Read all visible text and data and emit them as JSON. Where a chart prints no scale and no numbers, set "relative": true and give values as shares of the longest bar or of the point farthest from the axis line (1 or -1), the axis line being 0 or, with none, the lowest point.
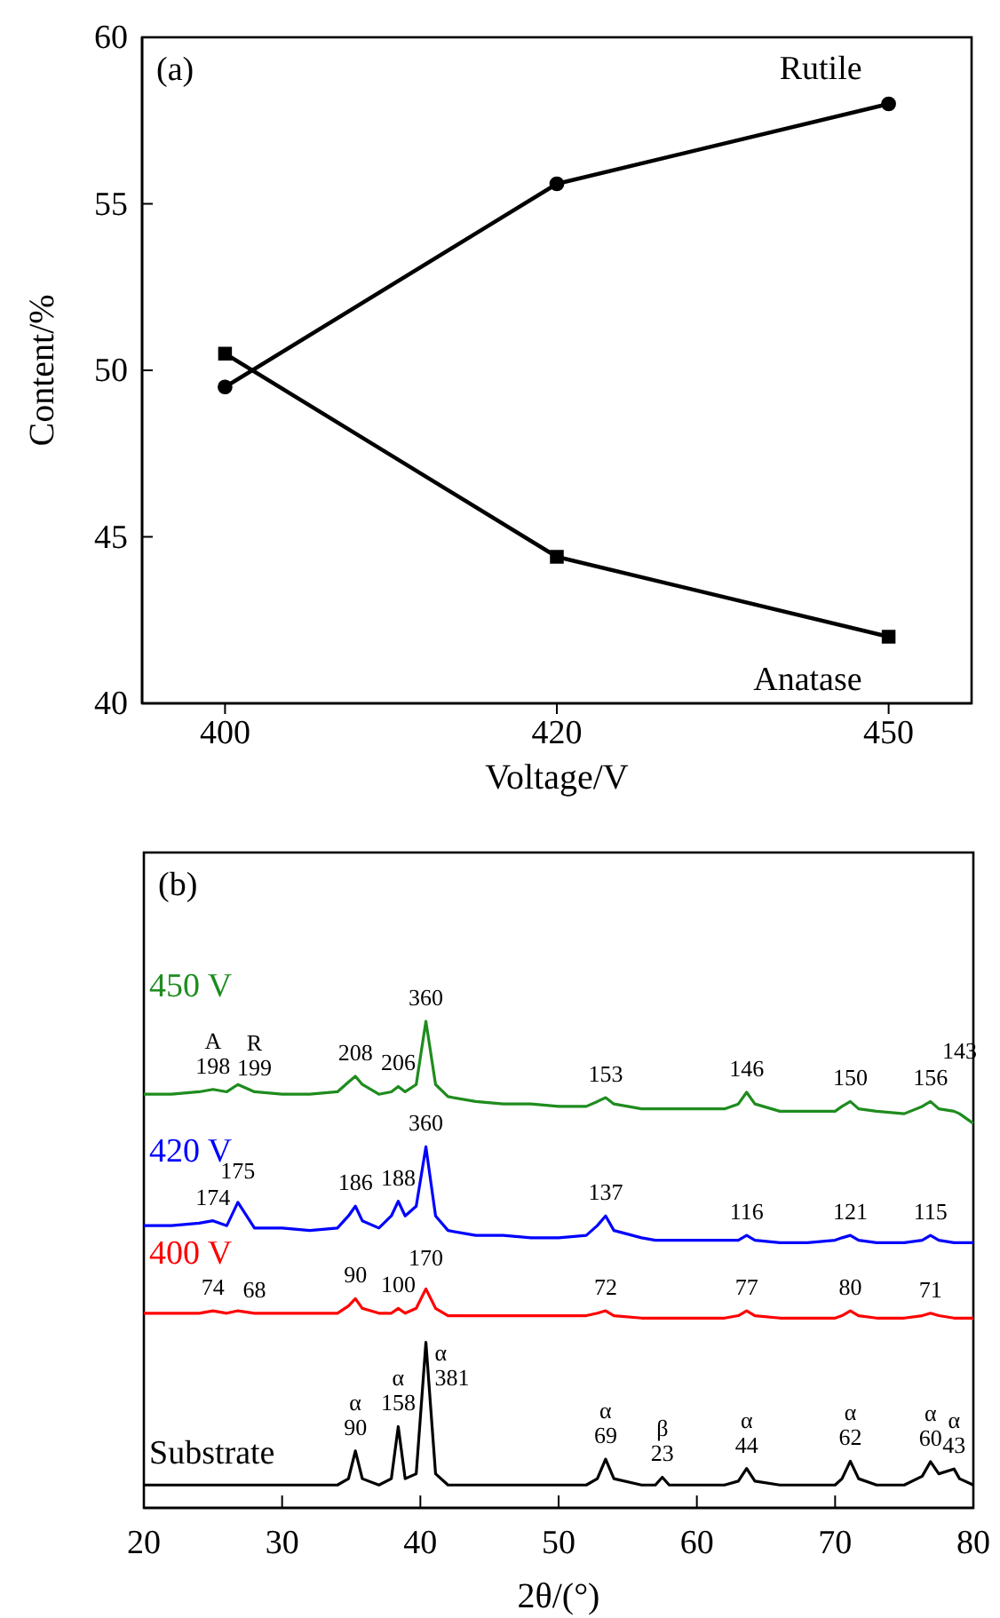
{
  "chart_data": [
    {
      "type": "line",
      "title": "(a)",
      "xlabel": "Voltage/V",
      "ylabel": "Content/%",
      "categories": [
        "400",
        "420",
        "450"
      ],
      "ylim": [
        40,
        60
      ],
      "yticks": [
        40,
        45,
        50,
        55,
        60
      ],
      "line_style": "solid",
      "series": [
        {
          "name": "Rutile",
          "color": "#000000",
          "marker": "circle",
          "values": [
            49.5,
            55.6,
            58.0
          ]
        },
        {
          "name": "Anatase",
          "color": "#000000",
          "marker": "square",
          "values": [
            50.5,
            44.4,
            42.0
          ]
        }
      ]
    },
    {
      "type": "line",
      "title": "(b)",
      "xlabel": "2θ/(°)",
      "relative": true,
      "tick_labels": "x",
      "xlim": [
        20,
        80
      ],
      "xticks": [
        20,
        30,
        40,
        50,
        60,
        70,
        80
      ],
      "line_style": "solid",
      "x": [
        20,
        22,
        24,
        25,
        26,
        26.8,
        28,
        30,
        32,
        34,
        34.8,
        35.3,
        35.8,
        37,
        37.9,
        38.4,
        38.9,
        39.7,
        40.4,
        41.1,
        42,
        44,
        46,
        48,
        50,
        52,
        52.8,
        53.4,
        54,
        56,
        57,
        57.5,
        58,
        60,
        62,
        63,
        63.6,
        64.2,
        66,
        68,
        70,
        70.5,
        71.1,
        71.7,
        73,
        75,
        76.3,
        76.9,
        77.5,
        78.6,
        79,
        80
      ],
      "series": [
        {
          "name": "450 V",
          "color": "#1e8c1e",
          "values": [
            0.85,
            0.85,
            0.855,
            0.86,
            0.855,
            0.87,
            0.855,
            0.85,
            0.85,
            0.855,
            0.875,
            0.887,
            0.87,
            0.85,
            0.855,
            0.866,
            0.855,
            0.87,
            1.0,
            0.87,
            0.845,
            0.835,
            0.83,
            0.83,
            0.825,
            0.825,
            0.835,
            0.843,
            0.83,
            0.82,
            0.82,
            0.82,
            0.82,
            0.82,
            0.82,
            0.83,
            0.854,
            0.83,
            0.815,
            0.815,
            0.815,
            0.825,
            0.835,
            0.82,
            0.815,
            0.81,
            0.825,
            0.835,
            0.82,
            0.815,
            0.81,
            0.79
          ]
        },
        {
          "name": "420 V",
          "color": "#0000ff",
          "values": [
            0.58,
            0.58,
            0.585,
            0.59,
            0.58,
            0.628,
            0.575,
            0.575,
            0.57,
            0.575,
            0.6,
            0.62,
            0.59,
            0.575,
            0.6,
            0.63,
            0.6,
            0.62,
            0.742,
            0.6,
            0.57,
            0.56,
            0.56,
            0.555,
            0.555,
            0.56,
            0.58,
            0.6,
            0.57,
            0.555,
            0.55,
            0.55,
            0.55,
            0.55,
            0.55,
            0.55,
            0.56,
            0.55,
            0.545,
            0.545,
            0.55,
            0.555,
            0.56,
            0.55,
            0.545,
            0.545,
            0.55,
            0.56,
            0.55,
            0.545,
            0.545,
            0.545
          ]
        },
        {
          "name": "400 V",
          "color": "#ff0000",
          "values": [
            0.4,
            0.4,
            0.4,
            0.405,
            0.4,
            0.405,
            0.4,
            0.4,
            0.4,
            0.4,
            0.415,
            0.43,
            0.41,
            0.4,
            0.4,
            0.41,
            0.4,
            0.41,
            0.45,
            0.41,
            0.395,
            0.395,
            0.395,
            0.395,
            0.395,
            0.395,
            0.4,
            0.405,
            0.395,
            0.39,
            0.39,
            0.39,
            0.39,
            0.39,
            0.39,
            0.395,
            0.405,
            0.395,
            0.39,
            0.39,
            0.39,
            0.395,
            0.405,
            0.395,
            0.39,
            0.39,
            0.395,
            0.4,
            0.395,
            0.39,
            0.39,
            0.39
          ]
        },
        {
          "name": "Substrate",
          "color": "#000000",
          "values": [
            0.047,
            0.047,
            0.047,
            0.047,
            0.047,
            0.047,
            0.047,
            0.047,
            0.047,
            0.047,
            0.06,
            0.117,
            0.06,
            0.047,
            0.06,
            0.167,
            0.06,
            0.07,
            0.34,
            0.07,
            0.047,
            0.047,
            0.047,
            0.047,
            0.047,
            0.047,
            0.06,
            0.1,
            0.06,
            0.047,
            0.047,
            0.063,
            0.047,
            0.047,
            0.047,
            0.055,
            0.081,
            0.055,
            0.047,
            0.047,
            0.047,
            0.06,
            0.096,
            0.06,
            0.047,
            0.047,
            0.065,
            0.095,
            0.07,
            0.08,
            0.06,
            0.047
          ]
        }
      ],
      "annotations": [
        {
          "text": "A",
          "x": 25,
          "y": 0.86
        },
        {
          "text": "198",
          "x": 25,
          "y": 0.86
        },
        {
          "text": "R",
          "x": 28,
          "y": 0.855
        },
        {
          "text": "199",
          "x": 28,
          "y": 0.855
        },
        {
          "text": "208",
          "x": 35.3,
          "y": 0.887
        },
        {
          "text": "206",
          "x": 38.4,
          "y": 0.866
        },
        {
          "text": "360",
          "x": 40.4,
          "y": 1.0
        },
        {
          "text": "153",
          "x": 53.4,
          "y": 0.843
        },
        {
          "text": "146",
          "x": 63.6,
          "y": 0.854
        },
        {
          "text": "150",
          "x": 71.1,
          "y": 0.835
        },
        {
          "text": "156",
          "x": 76.9,
          "y": 0.835
        },
        {
          "text": "143",
          "x": 79,
          "y": 0.81
        },
        {
          "text": "174",
          "x": 25,
          "y": 0.59
        },
        {
          "text": "175",
          "x": 26.8,
          "y": 0.628
        },
        {
          "text": "186",
          "x": 35.3,
          "y": 0.62
        },
        {
          "text": "188",
          "x": 38.4,
          "y": 0.63
        },
        {
          "text": "360",
          "x": 40.4,
          "y": 0.742
        },
        {
          "text": "137",
          "x": 53.4,
          "y": 0.6
        },
        {
          "text": "116",
          "x": 63.6,
          "y": 0.56
        },
        {
          "text": "121",
          "x": 71.1,
          "y": 0.56
        },
        {
          "text": "115",
          "x": 76.9,
          "y": 0.56
        },
        {
          "text": "74",
          "x": 25,
          "y": 0.405
        },
        {
          "text": "68",
          "x": 28,
          "y": 0.4
        },
        {
          "text": "90",
          "x": 35.3,
          "y": 0.43
        },
        {
          "text": "100",
          "x": 38.4,
          "y": 0.41
        },
        {
          "text": "170",
          "x": 40.4,
          "y": 0.45
        },
        {
          "text": "72",
          "x": 53.4,
          "y": 0.405
        },
        {
          "text": "77",
          "x": 63.6,
          "y": 0.405
        },
        {
          "text": "80",
          "x": 71.1,
          "y": 0.405
        },
        {
          "text": "71",
          "x": 76.9,
          "y": 0.4
        },
        {
          "text": "α",
          "x": 35.3,
          "y": 0.117
        },
        {
          "text": "90",
          "x": 35.3,
          "y": 0.117
        },
        {
          "text": "α",
          "x": 38.4,
          "y": 0.167
        },
        {
          "text": "158",
          "x": 38.4,
          "y": 0.167
        },
        {
          "text": "α",
          "x": 40.4,
          "y": 0.34
        },
        {
          "text": "381",
          "x": 40.4,
          "y": 0.34
        },
        {
          "text": "α",
          "x": 53.4,
          "y": 0.1
        },
        {
          "text": "69",
          "x": 53.4,
          "y": 0.1
        },
        {
          "text": "β",
          "x": 57.5,
          "y": 0.063
        },
        {
          "text": "23",
          "x": 57.5,
          "y": 0.063
        },
        {
          "text": "α",
          "x": 63.6,
          "y": 0.081
        },
        {
          "text": "44",
          "x": 63.6,
          "y": 0.081
        },
        {
          "text": "α",
          "x": 71.1,
          "y": 0.096
        },
        {
          "text": "62",
          "x": 71.1,
          "y": 0.096
        },
        {
          "text": "α",
          "x": 76.9,
          "y": 0.095
        },
        {
          "text": "60",
          "x": 76.9,
          "y": 0.095
        },
        {
          "text": "α",
          "x": 78.6,
          "y": 0.08
        },
        {
          "text": "43",
          "x": 78.6,
          "y": 0.08
        }
      ]
    }
  ]
}
